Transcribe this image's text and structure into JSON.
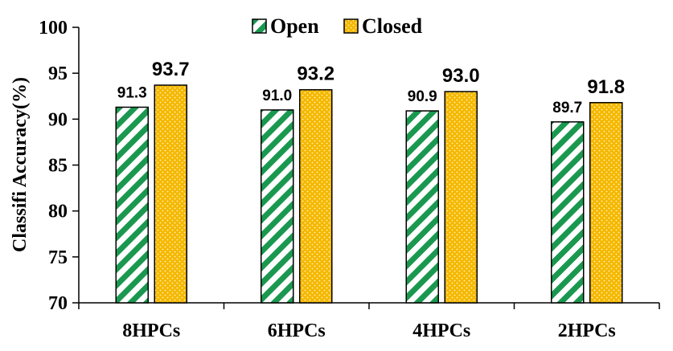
{
  "chart_data": {
    "type": "bar",
    "ylabel": "Classifi Accuracy(%)",
    "ylim": [
      70,
      100
    ],
    "yticks": [
      70,
      75,
      80,
      85,
      90,
      95,
      100
    ],
    "categories": [
      "8HPCs",
      "6HPCs",
      "4HPCs",
      "2HPCs"
    ],
    "series": [
      {
        "name": "Open",
        "values": [
          91.3,
          91.0,
          90.9,
          89.7
        ],
        "labels": [
          "91.3",
          "91.0",
          "90.9",
          "89.7"
        ],
        "color": "#1a9850",
        "pattern": "diagonal-stripes"
      },
      {
        "name": "Closed",
        "values": [
          93.7,
          93.2,
          93.0,
          91.8
        ],
        "labels": [
          "93.7",
          "93.2",
          "93.0",
          "91.8"
        ],
        "color": "#f5b800",
        "pattern": "dots"
      }
    ],
    "legend": "top-center",
    "grid": false
  }
}
